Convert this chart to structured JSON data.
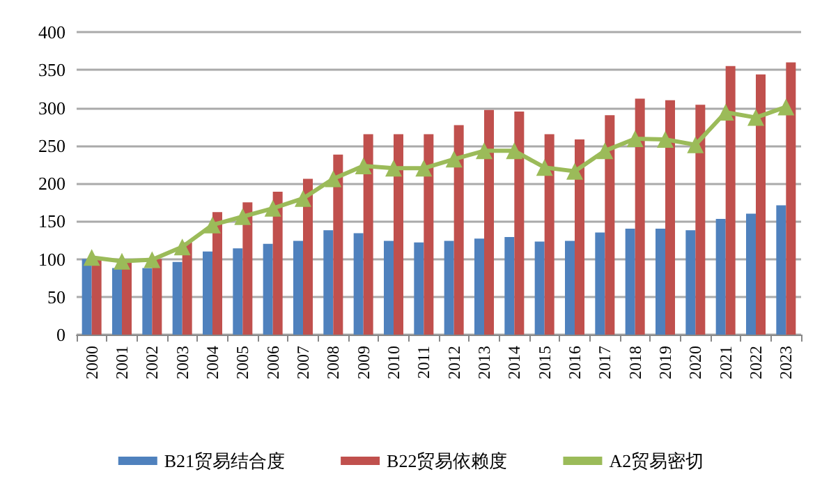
{
  "chart_data": {
    "type": "bar",
    "categories": [
      "2000",
      "2001",
      "2002",
      "2003",
      "2004",
      "2005",
      "2006",
      "2007",
      "2008",
      "2009",
      "2010",
      "2011",
      "2012",
      "2013",
      "2014",
      "2015",
      "2016",
      "2017",
      "2018",
      "2019",
      "2020",
      "2021",
      "2022",
      "2023"
    ],
    "series": [
      {
        "name": "B21贸易结合度",
        "color": "#4f81bd",
        "values": [
          100,
          88,
          88,
          96,
          110,
          114,
          120,
          124,
          138,
          134,
          124,
          122,
          124,
          127,
          129,
          123,
          124,
          135,
          140,
          140,
          138,
          153,
          160,
          171
        ]
      },
      {
        "name": "B22贸易依赖度",
        "color": "#c0504d",
        "values": [
          100,
          97,
          100,
          122,
          162,
          175,
          189,
          206,
          238,
          265,
          265,
          265,
          277,
          297,
          295,
          265,
          258,
          290,
          312,
          310,
          304,
          355,
          344,
          360
        ]
      },
      {
        "name": "A2贸易密切",
        "type": "line",
        "color": "#9bbb59",
        "marker": "triangle",
        "values": [
          102,
          97,
          99,
          116,
          145,
          156,
          167,
          180,
          206,
          223,
          220,
          220,
          232,
          243,
          243,
          221,
          216,
          243,
          259,
          258,
          251,
          294,
          287,
          301
        ]
      }
    ],
    "ylim": [
      0,
      400
    ],
    "yticks": [
      0,
      50,
      100,
      150,
      200,
      250,
      300,
      350,
      400
    ],
    "grid": "y",
    "legend": "bottom"
  }
}
